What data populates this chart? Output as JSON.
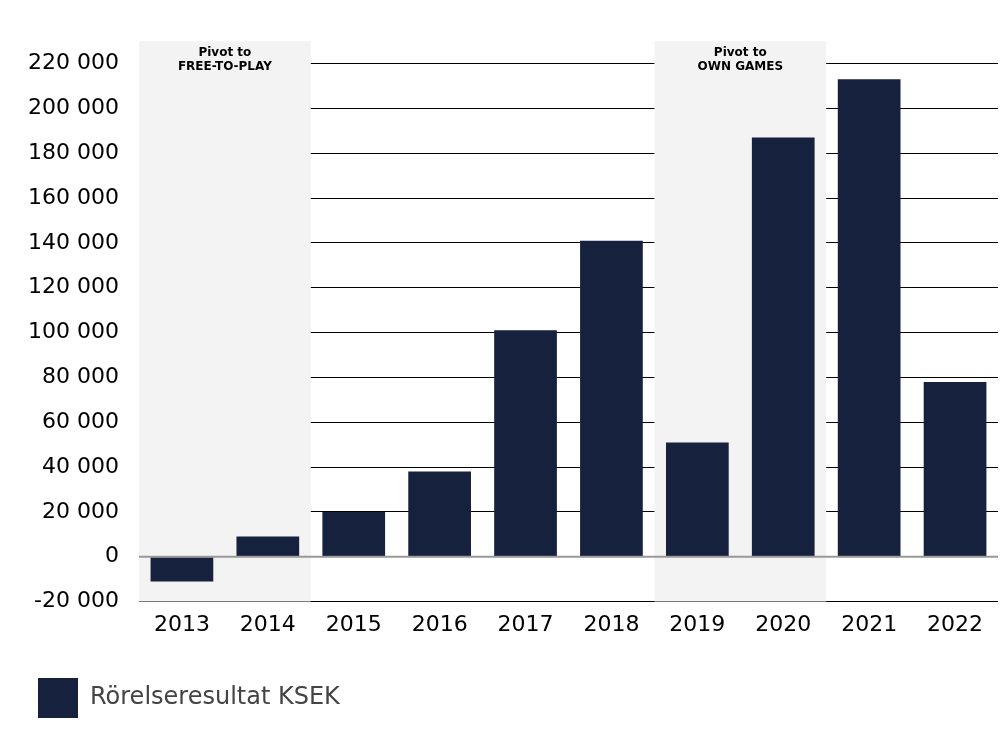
{
  "chart_data": {
    "type": "bar",
    "categories": [
      "2013",
      "2014",
      "2015",
      "2016",
      "2017",
      "2018",
      "2019",
      "2020",
      "2021",
      "2022"
    ],
    "series": [
      {
        "name": "Rörelseresultat KSEK",
        "color": "#16213e",
        "values": [
          -11000,
          9000,
          20000,
          38000,
          101000,
          141000,
          51000,
          187000,
          213000,
          78000
        ]
      }
    ],
    "ylim": [
      -20000,
      230000
    ],
    "yticks": [
      {
        "value": -20000,
        "label": "-20 000"
      },
      {
        "value": 0,
        "label": "0"
      },
      {
        "value": 20000,
        "label": "20 000"
      },
      {
        "value": 40000,
        "label": "40 000"
      },
      {
        "value": 60000,
        "label": "60 000"
      },
      {
        "value": 80000,
        "label": "80 000"
      },
      {
        "value": 100000,
        "label": "100 000"
      },
      {
        "value": 120000,
        "label": "120 000"
      },
      {
        "value": 140000,
        "label": "140 000"
      },
      {
        "value": 160000,
        "label": "160 000"
      },
      {
        "value": 180000,
        "label": "180 000"
      },
      {
        "value": 200000,
        "label": "200 000"
      },
      {
        "value": 220000,
        "label": "220 000"
      }
    ],
    "bands": [
      {
        "axis": "x",
        "from": "2013",
        "to": "2014",
        "label": "Pivot to\nFREE-TO-PLAY",
        "color": "#f3f3f3"
      },
      {
        "axis": "x",
        "from": "2019",
        "to": "2020",
        "label": "Pivot to\nOWN GAMES",
        "color": "#f3f3f3"
      }
    ],
    "grid": "y",
    "legend": "bottom"
  }
}
